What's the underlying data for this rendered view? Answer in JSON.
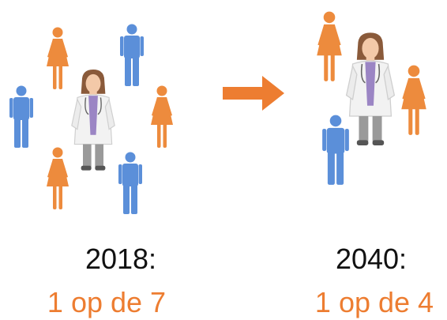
{
  "left": {
    "year": "2018:",
    "ratio": "1 op de 7"
  },
  "right": {
    "year": "2040:",
    "ratio": "1 op de 4"
  }
}
